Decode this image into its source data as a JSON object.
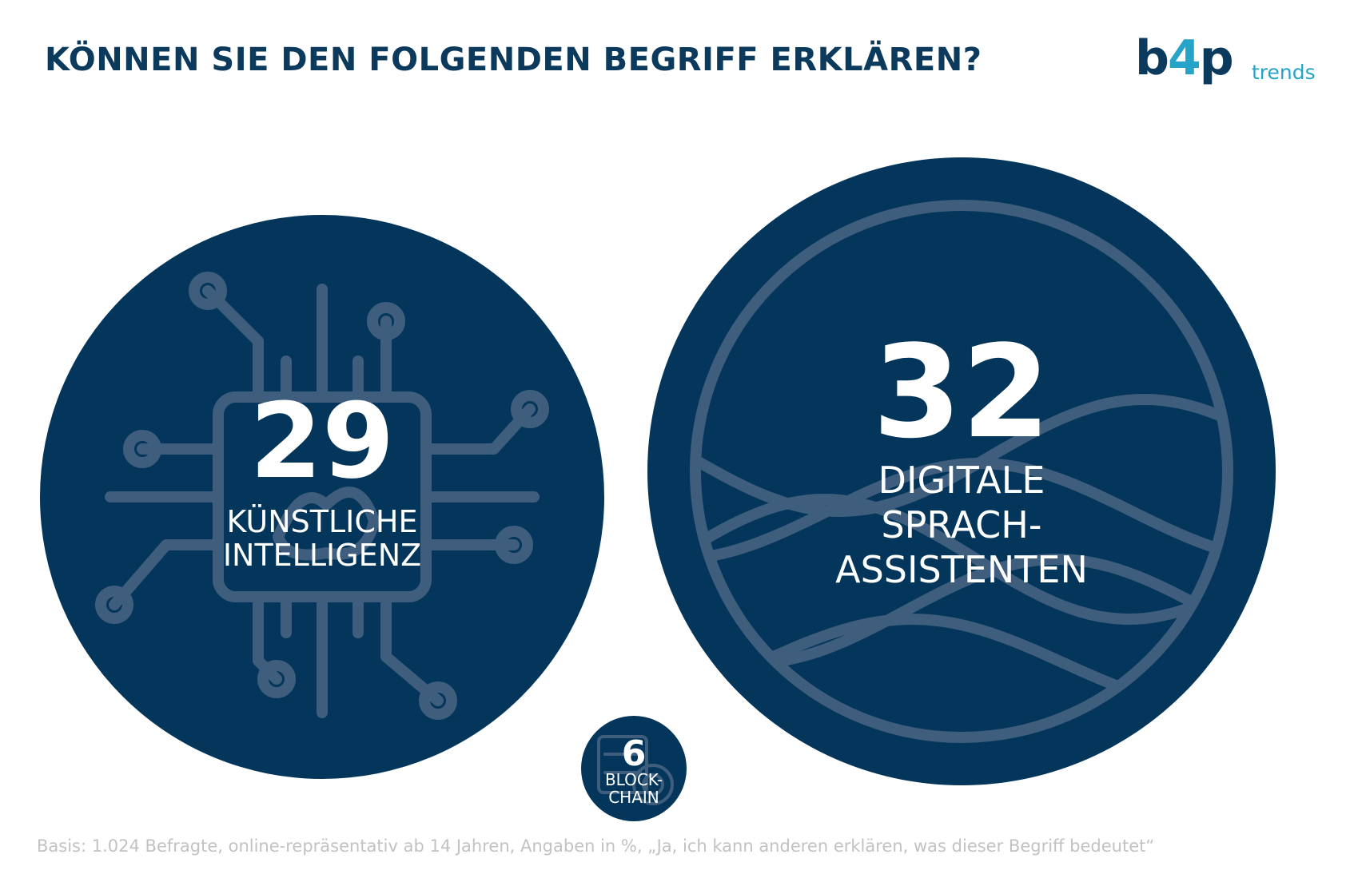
{
  "header": {
    "title": "KÖNNEN SIE DEN FOLGENDEN BEGRIFF ERKLÄREN?"
  },
  "logo": {
    "brand_b": "b",
    "brand_4": "4",
    "brand_p": "p",
    "sub": "trends"
  },
  "footnote": "Basis: 1.024 Befragte, online-repräsentativ ab 14 Jahren, Angaben in %, „Ja, ich kann anderen erklären, was dieser Begriff bedeutet“",
  "colors": {
    "bubble": "#03365a",
    "title": "#0b3a5d",
    "accent": "#26a3c8",
    "icon": "#3f5e7d",
    "footnote": "#c2c2c2"
  },
  "chart_data": {
    "type": "bubble",
    "unit": "%",
    "series": [
      {
        "category": "KÜNSTLICHE INTELLIGENZ",
        "label_lines": [
          "KÜNSTLICHE",
          "INTELLIGENZ"
        ],
        "value": 29,
        "icon": "circuit-chip-icon"
      },
      {
        "category": "DIGITALE SPRACH-ASSISTENTEN",
        "label_lines": [
          "DIGITALE",
          "SPRACH-",
          "ASSISTENTEN"
        ],
        "value": 32,
        "icon": "sound-wave-icon"
      },
      {
        "category": "BLOCKCHAIN",
        "label_lines": [
          "BLOCK-",
          "CHAIN"
        ],
        "value": 6,
        "icon": "blockchain-server-icon"
      }
    ]
  }
}
